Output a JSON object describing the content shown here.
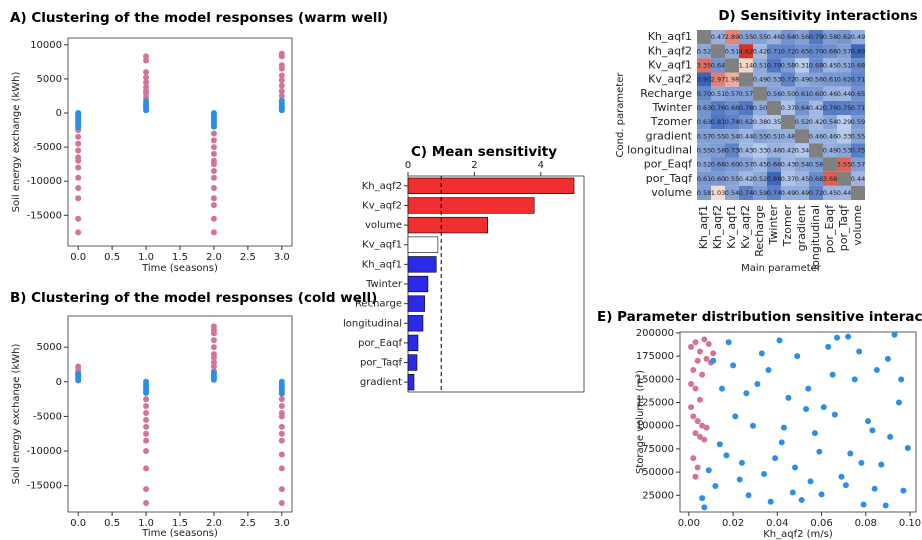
{
  "chart_data": [
    {
      "type": "scatter",
      "title": "A) Clustering of the model responses (warm well)",
      "x_label": "Time (seasons)",
      "y_label": "Soil energy exchange (kWh)",
      "xlim": [
        -0.15,
        3.15
      ],
      "ylim": [
        -19500,
        11000
      ],
      "xticks": [
        {
          "value": 0,
          "label": "0.0"
        },
        0.5,
        {
          "value": 1,
          "label": "1.0"
        },
        1.5,
        {
          "value": 2,
          "label": "2.0"
        },
        2.5,
        {
          "value": 3,
          "label": "3.0"
        }
      ],
      "yticks": [
        -15000,
        -10000,
        -5000,
        0,
        5000,
        10000
      ],
      "series": [
        {
          "color": "#d4739a",
          "x": [
            0,
            0,
            0,
            0,
            0,
            0,
            0,
            0,
            0,
            0,
            0,
            0,
            1,
            1,
            1,
            1,
            1,
            1,
            1,
            1,
            1,
            2,
            2,
            2,
            2,
            2,
            2,
            2,
            2,
            2,
            2,
            2,
            2,
            2,
            2,
            2,
            3,
            3,
            3,
            3,
            3,
            3,
            3,
            3,
            3
          ],
          "y": [
            -2500,
            -3500,
            -4500,
            -5500,
            -6500,
            -7000,
            -8000,
            -9500,
            -11000,
            -12500,
            -15500,
            -17500,
            2200,
            2800,
            3200,
            3800,
            4500,
            5200,
            6000,
            7700,
            8300,
            -1000,
            -2000,
            -3000,
            -4000,
            -5000,
            -6000,
            -7000,
            -7500,
            -8500,
            -9500,
            -11000,
            -12500,
            -13500,
            -15500,
            -17500,
            2500,
            3200,
            4000,
            4800,
            5500,
            6500,
            7000,
            8300,
            8700
          ]
        },
        {
          "color": "#2b8ee8",
          "x": [
            0,
            0,
            0,
            0,
            0,
            0,
            0,
            0,
            1,
            1,
            1,
            1,
            1,
            2,
            2,
            2,
            2,
            2,
            2,
            3,
            3,
            3,
            3,
            3
          ],
          "y": [
            0,
            -300,
            -600,
            -900,
            -1200,
            -1500,
            -1800,
            -2100,
            400,
            700,
            1000,
            1300,
            1700,
            0,
            -400,
            -800,
            -1200,
            -1600,
            -2000,
            400,
            700,
            1000,
            1400,
            1800
          ]
        }
      ]
    },
    {
      "type": "scatter",
      "title": "B) Clustering of the model responses (cold well)",
      "x_label": "Time (seasons)",
      "y_label": "Soil energy exchange (kWh)",
      "xlim": [
        -0.15,
        3.15
      ],
      "ylim": [
        -18800,
        9500
      ],
      "xticks": [
        {
          "value": 0,
          "label": "0.0"
        },
        0.5,
        {
          "value": 1,
          "label": "1.0"
        },
        1.5,
        {
          "value": 2,
          "label": "2.0"
        },
        2.5,
        {
          "value": 3,
          "label": "3.0"
        }
      ],
      "yticks": [
        -15000,
        -10000,
        -5000,
        0,
        5000
      ],
      "series": [
        {
          "color": "#d4739a",
          "x": [
            0,
            0,
            0,
            0,
            1,
            1,
            1,
            1,
            1,
            1,
            1,
            1,
            1,
            1,
            1,
            1,
            2,
            2,
            2,
            2,
            2,
            2,
            2,
            2,
            2,
            2,
            3,
            3,
            3,
            3,
            3,
            3,
            3,
            3,
            3,
            3,
            3,
            3
          ],
          "y": [
            900,
            1300,
            1700,
            2200,
            -1500,
            -2500,
            -3500,
            -4500,
            -5500,
            -6500,
            -7500,
            -8500,
            -10000,
            -12500,
            -15500,
            -17500,
            1500,
            2200,
            2800,
            3500,
            4000,
            5000,
            6000,
            7000,
            7500,
            8000,
            -1500,
            -2500,
            -3500,
            -4500,
            -5000,
            -6500,
            -7500,
            -8500,
            -10500,
            -12500,
            -15500,
            -17500
          ]
        },
        {
          "color": "#2b8ee8",
          "x": [
            0,
            0,
            0,
            0,
            1,
            1,
            1,
            1,
            1,
            2,
            2,
            2,
            2,
            3,
            3,
            3,
            3,
            3
          ],
          "y": [
            200,
            500,
            800,
            1100,
            0,
            -400,
            -800,
            -1200,
            -1600,
            300,
            600,
            900,
            1300,
            0,
            -400,
            -800,
            -1200,
            -1700
          ]
        }
      ]
    },
    {
      "type": "bar",
      "title": "C) Mean sensitivity",
      "orientation": "horizontal",
      "categories": [
        "Kh_aqf2",
        "Kv_aqf2",
        "volume",
        "Kv_aqf1",
        "Kh_aqf1",
        "Twinter",
        "Recharge",
        "longitudinal",
        "por_Eaqf",
        "por_Taqf",
        "gradient"
      ],
      "values": [
        5.0,
        3.8,
        2.4,
        0.9,
        0.85,
        0.6,
        0.5,
        0.45,
        0.3,
        0.27,
        0.18
      ],
      "colors": [
        "#f03030",
        "#f03030",
        "#f03030",
        "#ffffff",
        "#2a2ae8",
        "#2a2ae8",
        "#2a2ae8",
        "#2a2ae8",
        "#2a2ae8",
        "#2a2ae8",
        "#2a2ae8"
      ],
      "xlim": [
        0,
        5.3
      ],
      "xticks": [
        0,
        2,
        4
      ],
      "reference_line": 1
    },
    {
      "type": "heatmap",
      "title": "D) Sensitivity interactions",
      "x_label": "Main parameter",
      "y_label": "Cond. parameter",
      "x_categories": [
        "Kh_aqf1",
        "Kh_aqf2",
        "Kv_aqf1",
        "Kv_aqf2",
        "Recharge",
        "Twinter",
        "Tzomer",
        "gradient",
        "longitudinal",
        "por_Eaqf",
        "por_Taqf",
        "volume"
      ],
      "y_categories": [
        "Kh_aqf1",
        "Kh_aqf2",
        "Kv_aqf1",
        "Kv_aqf2",
        "Recharge",
        "Twinter",
        "Tzomer",
        "gradient",
        "longitudinal",
        "por_Eaqf",
        "por_Taqf",
        "volume"
      ],
      "z": [
        [
          null,
          0.47,
          2.89,
          0.55,
          0.55,
          0.46,
          0.64,
          0.56,
          0.79,
          0.58,
          0.62,
          0.49
        ],
        [
          0.52,
          null,
          0.51,
          4.62,
          0.42,
          0.71,
          0.72,
          0.65,
          0.7,
          0.66,
          0.57,
          0.89
        ],
        [
          3.35,
          0.64,
          null,
          1.14,
          0.51,
          0.79,
          0.58,
          0.31,
          0.68,
          0.45,
          0.51,
          0.68
        ],
        [
          0.9,
          2.97,
          1.98,
          null,
          0.49,
          0.53,
          0.72,
          0.49,
          0.56,
          0.61,
          0.62,
          0.71
        ],
        [
          0.7,
          0.51,
          0.57,
          0.57,
          null,
          0.56,
          0.5,
          0.61,
          0.6,
          0.46,
          0.44,
          0.65
        ],
        [
          0.63,
          0.76,
          0.68,
          0.78,
          0.5,
          null,
          0.37,
          0.64,
          0.42,
          0.76,
          0.75,
          0.71
        ],
        [
          0.63,
          0.81,
          0.74,
          0.62,
          0.38,
          0.35,
          null,
          0.52,
          0.42,
          0.54,
          0.29,
          0.59
        ],
        [
          0.57,
          0.55,
          0.54,
          0.44,
          0.55,
          0.51,
          0.48,
          null,
          0.46,
          0.46,
          0.33,
          0.55
        ],
        [
          0.55,
          0.58,
          0.73,
          0.43,
          0.33,
          0.46,
          0.42,
          0.34,
          null,
          0.49,
          0.53,
          0.75
        ],
        [
          0.52,
          0.66,
          0.6,
          0.57,
          0.45,
          0.66,
          0.43,
          0.54,
          0.58,
          null,
          3.55,
          0.57
        ],
        [
          0.61,
          0.6,
          0.55,
          0.42,
          0.52,
          0.88,
          0.37,
          0.45,
          0.68,
          3.68,
          null,
          0.44
        ],
        [
          0.58,
          1.03,
          0.54,
          0.74,
          0.59,
          0.74,
          0.49,
          0.49,
          0.72,
          0.45,
          0.44,
          null
        ]
      ],
      "value_labels": [
        [
          null,
          "0.47",
          "2.89",
          "0.55",
          "0.55",
          "0.46",
          "0.64",
          "0.56",
          "0.79",
          "0.58",
          "0.62",
          "0.49"
        ],
        [
          "0.52",
          null,
          "0.51",
          "4.62",
          "0.42",
          "0.71",
          "0.72",
          "0.65",
          "0.70",
          "0.66",
          "0.57",
          "0.89"
        ],
        [
          "3.35",
          "0.64",
          null,
          "1.14",
          "0.51",
          "0.79",
          "0.58",
          "0.31",
          "0.68",
          "0.45",
          "0.51",
          "0.68"
        ],
        [
          "0.90",
          "2.97",
          "1.98",
          null,
          "0.49",
          "0.53",
          "0.72",
          "0.49",
          "0.56",
          "0.61",
          "0.62",
          "0.71"
        ],
        [
          "0.70",
          "0.51",
          "0.57",
          "0.57",
          null,
          "0.56",
          "0.50",
          "0.61",
          "0.60",
          "0.46",
          "0.44",
          "0.65"
        ],
        [
          "0.63",
          "0.76",
          "0.68",
          "0.78",
          "0.50",
          null,
          "0.37",
          "0.64",
          "0.42",
          "0.76",
          "0.75",
          "0.71"
        ],
        [
          "0.63",
          "0.81",
          "0.74",
          "0.62",
          "0.38",
          "0.35",
          null,
          "0.52",
          "0.42",
          "0.54",
          "0.29",
          "0.59"
        ],
        [
          "0.57",
          "0.55",
          "0.54",
          "0.44",
          "0.55",
          "0.51",
          "0.48",
          null,
          "0.46",
          "0.46",
          "0.33",
          "0.55"
        ],
        [
          "0.55",
          "0.58",
          "0.73",
          "0.43",
          "0.33",
          "0.46",
          "0.42",
          "0.34",
          null,
          "0.49",
          "0.53",
          "0.75"
        ],
        [
          "0.52",
          "0.66",
          "0.60",
          "0.57",
          "0.45",
          "0.66",
          "0.43",
          "0.54",
          "0.58",
          null,
          "3.55",
          "0.57"
        ],
        [
          "0.61",
          "0.60",
          "0.55",
          "0.42",
          "0.52",
          "0.88",
          "0.37",
          "0.45",
          "0.68",
          "3.68",
          null,
          "0.44"
        ],
        [
          "0.58",
          "1.03",
          "0.54",
          "0.74",
          "0.59",
          "0.74",
          "0.49",
          "0.49",
          "0.72",
          "0.45",
          "0.44",
          null
        ]
      ]
    },
    {
      "type": "scatter",
      "title": "E) Parameter distribution sensitive interaction",
      "x_label": "Kh_aqf2 (m/s)",
      "y_label": "Storage volume (m³)",
      "xlim": [
        -0.004,
        0.1027
      ],
      "ylim": [
        7000,
        201000
      ],
      "xticks": [
        {
          "value": 0,
          "label": "0.00"
        },
        0.02,
        0.04,
        0.06,
        0.08,
        {
          "value": 0.1,
          "label": "0.10"
        }
      ],
      "yticks": [
        25000,
        50000,
        75000,
        100000,
        125000,
        150000,
        175000,
        200000
      ],
      "series": [
        {
          "color": "#d4739a",
          "x": [
            0.001,
            0.003,
            0.005,
            0.007,
            0.009,
            0.011,
            0.004,
            0.008,
            0.01,
            0.002,
            0.006,
            0.001,
            0.003,
            0.005,
            0.001,
            0.002,
            0.004,
            0.006,
            0.008,
            0.003,
            0.005,
            0.007,
            0.002,
            0.004,
            0.003
          ],
          "y": [
            185000,
            190000,
            180000,
            193000,
            188000,
            178000,
            170000,
            172000,
            168000,
            160000,
            155000,
            145000,
            140000,
            128000,
            120000,
            110000,
            105000,
            100000,
            98000,
            92000,
            88000,
            85000,
            65000,
            55000,
            45000
          ]
        },
        {
          "color": "#2b8ee8",
          "x": [
            0.006,
            0.012,
            0.018,
            0.024,
            0.031,
            0.037,
            0.043,
            0.049,
            0.055,
            0.061,
            0.067,
            0.073,
            0.079,
            0.085,
            0.091,
            0.097,
            0.009,
            0.015,
            0.021,
            0.027,
            0.033,
            0.039,
            0.045,
            0.051,
            0.057,
            0.063,
            0.069,
            0.075,
            0.081,
            0.087,
            0.093,
            0.099,
            0.007,
            0.014,
            0.02,
            0.026,
            0.034,
            0.041,
            0.047,
            0.053,
            0.059,
            0.065,
            0.071,
            0.077,
            0.083,
            0.089,
            0.095,
            0.011,
            0.017,
            0.023,
            0.029,
            0.036,
            0.042,
            0.048,
            0.054,
            0.06,
            0.066,
            0.072,
            0.078,
            0.084,
            0.09,
            0.096
          ],
          "y": [
            22000,
            35000,
            190000,
            60000,
            145000,
            18000,
            98000,
            175000,
            40000,
            120000,
            195000,
            70000,
            15000,
            160000,
            88000,
            30000,
            52000,
            140000,
            110000,
            25000,
            178000,
            65000,
            130000,
            20000,
            92000,
            185000,
            45000,
            150000,
            105000,
            58000,
            198000,
            76000,
            12000,
            80000,
            165000,
            135000,
            48000,
            192000,
            28000,
            118000,
            72000,
            155000,
            36000,
            180000,
            95000,
            14000,
            125000,
            170000,
            68000,
            42000,
            100000,
            160000,
            82000,
            55000,
            140000,
            26000,
            112000,
            196000,
            60000,
            32000,
            172000,
            150000
          ]
        }
      ]
    }
  ]
}
